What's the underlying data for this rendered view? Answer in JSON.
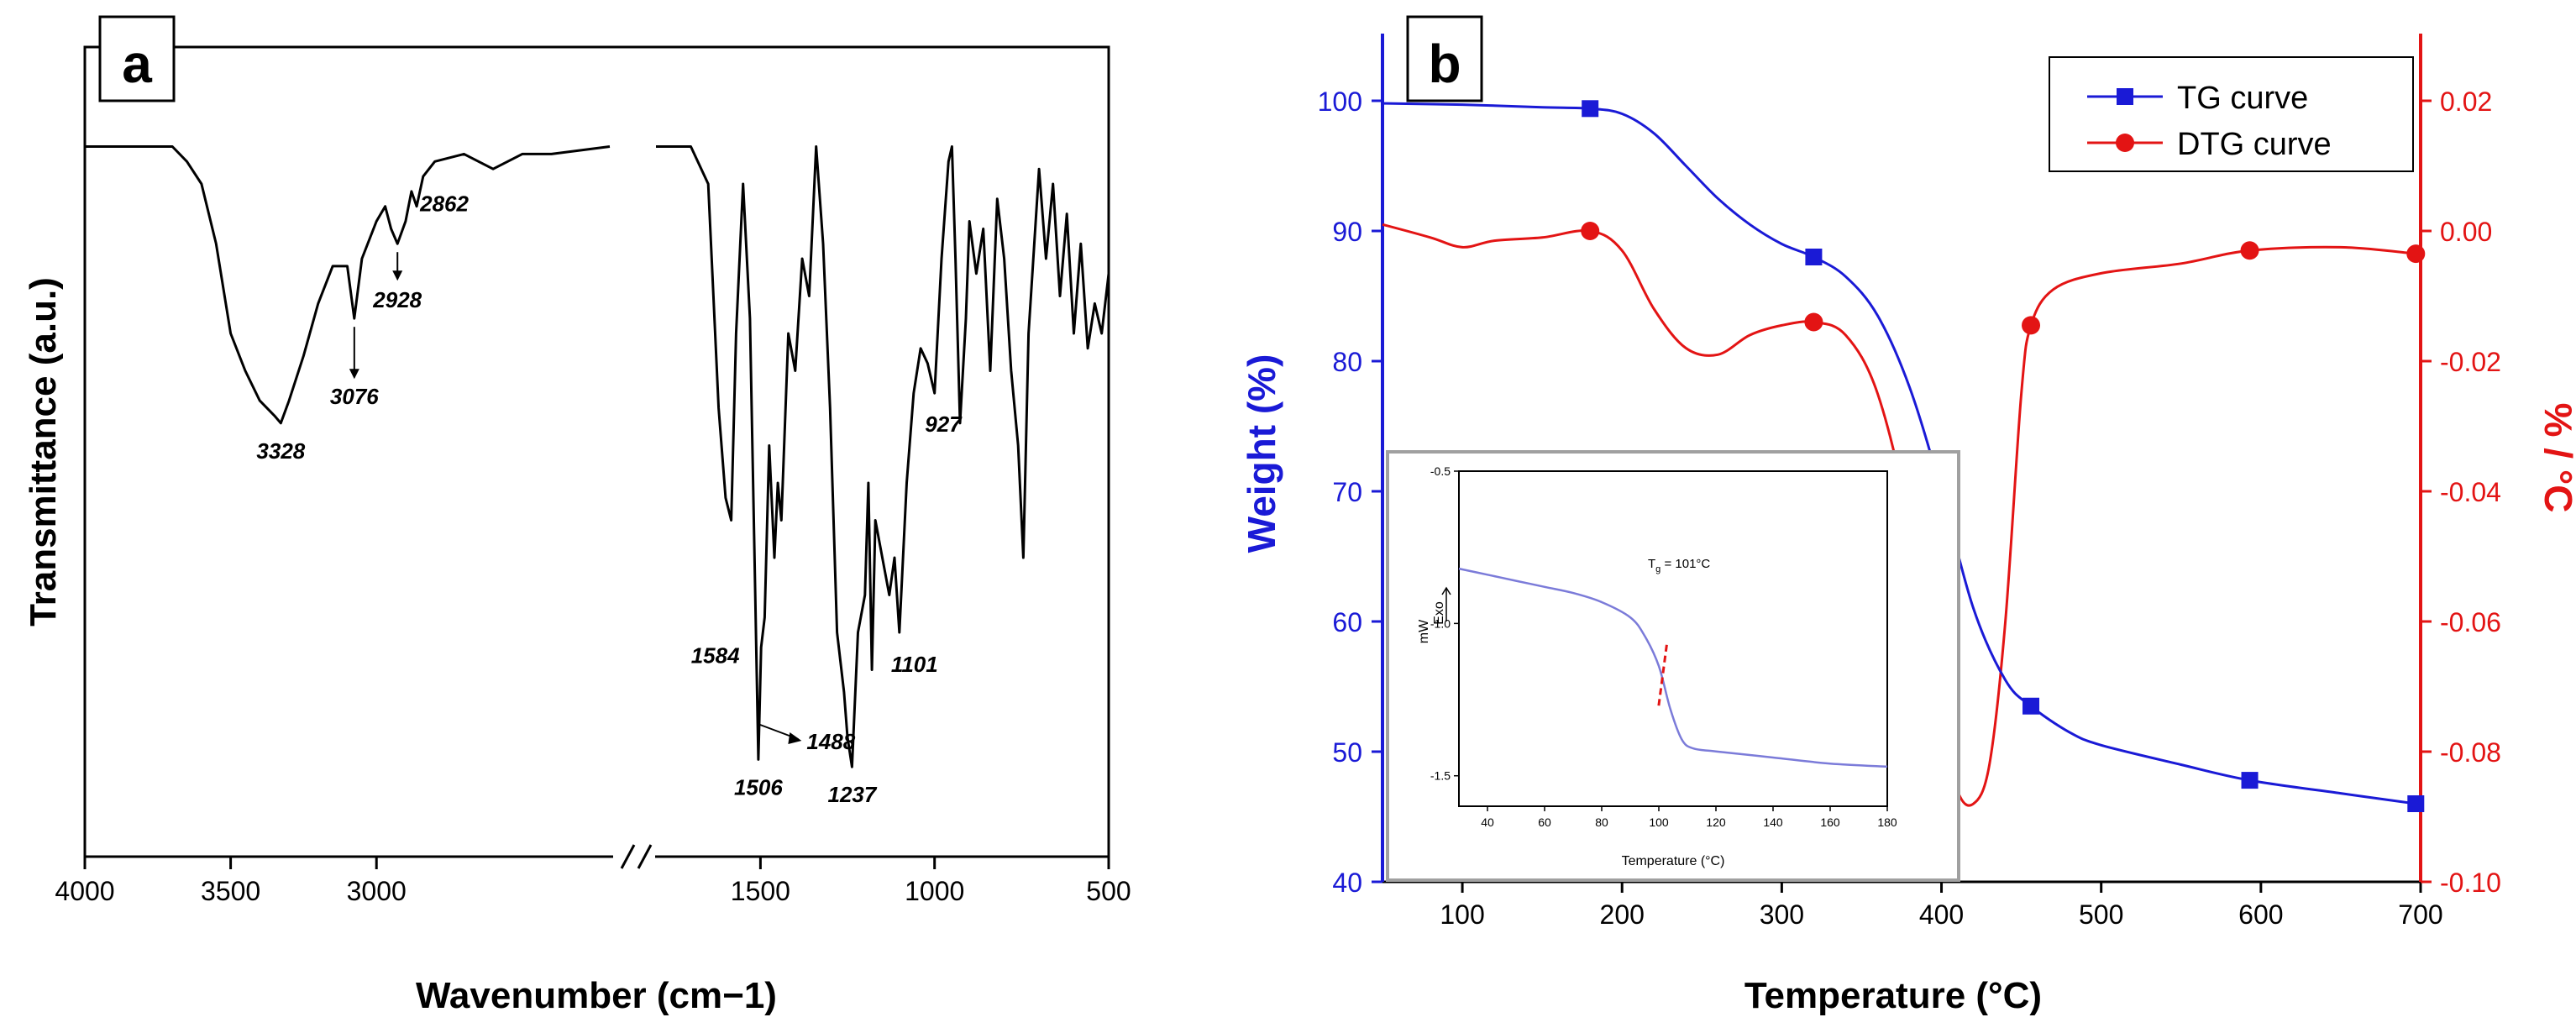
{
  "chart_data": [
    {
      "panel": "a",
      "type": "line",
      "xlabel": "Wavenumber (cm−1)",
      "ylabel": "Transmittance (a.u.)",
      "x_ticks": [
        "4000",
        "3500",
        "3000",
        "1500",
        "1000",
        "500"
      ],
      "x_segments": [
        [
          4000,
          2200
        ],
        [
          1800,
          500
        ]
      ],
      "ylim": [
        0,
        100
      ],
      "series": [
        {
          "points": [
            [
              4000,
              95
            ],
            [
              3700,
              95
            ],
            [
              3650,
              93
            ],
            [
              3600,
              90
            ],
            [
              3550,
              82
            ],
            [
              3500,
              70
            ],
            [
              3450,
              65
            ],
            [
              3400,
              61
            ],
            [
              3350,
              59
            ],
            [
              3328,
              58
            ],
            [
              3300,
              61
            ],
            [
              3250,
              67
            ],
            [
              3200,
              74
            ],
            [
              3150,
              79
            ],
            [
              3100,
              79
            ],
            [
              3076,
              72
            ],
            [
              3050,
              80
            ],
            [
              3000,
              85
            ],
            [
              2970,
              87
            ],
            [
              2950,
              84
            ],
            [
              2928,
              82
            ],
            [
              2900,
              85
            ],
            [
              2880,
              89
            ],
            [
              2862,
              87
            ],
            [
              2840,
              91
            ],
            [
              2800,
              93
            ],
            [
              2700,
              94
            ],
            [
              2600,
              92
            ],
            [
              2500,
              94
            ],
            [
              2400,
              94
            ],
            [
              2200,
              95
            ],
            [
              1800,
              95
            ],
            [
              1700,
              95
            ],
            [
              1650,
              90
            ],
            [
              1620,
              60
            ],
            [
              1600,
              48
            ],
            [
              1584,
              45
            ],
            [
              1570,
              70
            ],
            [
              1550,
              90
            ],
            [
              1530,
              72
            ],
            [
              1515,
              35
            ],
            [
              1506,
              13
            ],
            [
              1498,
              28
            ],
            [
              1488,
              32
            ],
            [
              1475,
              55
            ],
            [
              1460,
              40
            ],
            [
              1450,
              50
            ],
            [
              1440,
              45
            ],
            [
              1420,
              70
            ],
            [
              1400,
              65
            ],
            [
              1380,
              80
            ],
            [
              1360,
              75
            ],
            [
              1340,
              95
            ],
            [
              1320,
              82
            ],
            [
              1300,
              60
            ],
            [
              1280,
              30
            ],
            [
              1260,
              22
            ],
            [
              1250,
              16
            ],
            [
              1237,
              12
            ],
            [
              1220,
              30
            ],
            [
              1200,
              35
            ],
            [
              1190,
              50
            ],
            [
              1180,
              25
            ],
            [
              1170,
              45
            ],
            [
              1150,
              40
            ],
            [
              1130,
              35
            ],
            [
              1115,
              40
            ],
            [
              1101,
              30
            ],
            [
              1080,
              50
            ],
            [
              1060,
              62
            ],
            [
              1040,
              68
            ],
            [
              1020,
              66
            ],
            [
              1000,
              62
            ],
            [
              980,
              80
            ],
            [
              960,
              93
            ],
            [
              950,
              95
            ],
            [
              940,
              80
            ],
            [
              927,
              58
            ],
            [
              910,
              72
            ],
            [
              900,
              85
            ],
            [
              880,
              78
            ],
            [
              860,
              84
            ],
            [
              840,
              65
            ],
            [
              820,
              88
            ],
            [
              800,
              80
            ],
            [
              780,
              65
            ],
            [
              760,
              55
            ],
            [
              745,
              40
            ],
            [
              730,
              70
            ],
            [
              700,
              92
            ],
            [
              680,
              80
            ],
            [
              660,
              90
            ],
            [
              640,
              75
            ],
            [
              620,
              86
            ],
            [
              600,
              70
            ],
            [
              580,
              82
            ],
            [
              560,
              68
            ],
            [
              540,
              74
            ],
            [
              520,
              70
            ],
            [
              500,
              78
            ]
          ]
        }
      ],
      "annotations": [
        {
          "label": "3328",
          "x": 3328,
          "y": 58
        },
        {
          "label": "3076",
          "x": 3076,
          "y": 72,
          "arrow": true
        },
        {
          "label": "2928",
          "x": 2928,
          "y": 82,
          "arrow": true
        },
        {
          "label": "2862",
          "x": 2862,
          "y": 87
        },
        {
          "label": "1584",
          "x": 1584,
          "y": 45
        },
        {
          "label": "1506",
          "x": 1506,
          "y": 13
        },
        {
          "label": "1488",
          "x": 1488,
          "y": 32,
          "arrow": true
        },
        {
          "label": "1237",
          "x": 1237,
          "y": 12
        },
        {
          "label": "1101",
          "x": 1101,
          "y": 30
        },
        {
          "label": "927",
          "x": 927,
          "y": 58
        }
      ]
    },
    {
      "panel": "b",
      "type": "line",
      "xlabel": "Temperature (°C)",
      "ylabel": "Weight (%)",
      "ylabel_right": "% / °C",
      "xlim": [
        50,
        700
      ],
      "ylim": [
        40,
        105
      ],
      "ylim_right": [
        -0.1,
        0.03
      ],
      "x_ticks": [
        100,
        200,
        300,
        400,
        500,
        600,
        700
      ],
      "y_ticks": [
        40,
        50,
        60,
        70,
        80,
        90,
        100
      ],
      "y_ticks_right": [
        "-0.10",
        "-0.08",
        "-0.06",
        "-0.04",
        "-0.02",
        "0.00",
        "0.02"
      ],
      "legend_position": "top-right",
      "series": [
        {
          "name": "TG curve",
          "color": "#1a1ad6",
          "marker": "square",
          "points": [
            [
              50,
              99.8
            ],
            [
              100,
              99.7
            ],
            [
              150,
              99.5
            ],
            [
              180,
              99.4
            ],
            [
              200,
              99.0
            ],
            [
              220,
              97.5
            ],
            [
              240,
              95.0
            ],
            [
              260,
              92.5
            ],
            [
              280,
              90.5
            ],
            [
              300,
              89.0
            ],
            [
              320,
              88.0
            ],
            [
              340,
              86.5
            ],
            [
              360,
              83.5
            ],
            [
              380,
              78.0
            ],
            [
              400,
              70.0
            ],
            [
              420,
              61.0
            ],
            [
              440,
              55.5
            ],
            [
              456,
              53.5
            ],
            [
              480,
              51.5
            ],
            [
              500,
              50.5
            ],
            [
              550,
              49.0
            ],
            [
              593,
              47.8
            ],
            [
              650,
              46.8
            ],
            [
              697,
              46.0
            ]
          ],
          "markers_at": [
            180,
            320,
            456,
            593,
            697
          ]
        },
        {
          "name": "DTG curve",
          "color": "#e31414",
          "marker": "circle",
          "axis": "right",
          "points": [
            [
              50,
              0.001
            ],
            [
              80,
              -0.001
            ],
            [
              100,
              -0.0025
            ],
            [
              120,
              -0.0015
            ],
            [
              150,
              -0.001
            ],
            [
              180,
              0.0
            ],
            [
              200,
              -0.003
            ],
            [
              220,
              -0.012
            ],
            [
              240,
              -0.018
            ],
            [
              260,
              -0.019
            ],
            [
              280,
              -0.016
            ],
            [
              300,
              -0.0145
            ],
            [
              320,
              -0.014
            ],
            [
              340,
              -0.016
            ],
            [
              360,
              -0.025
            ],
            [
              380,
              -0.045
            ],
            [
              400,
              -0.075
            ],
            [
              410,
              -0.086
            ],
            [
              420,
              -0.088
            ],
            [
              430,
              -0.082
            ],
            [
              440,
              -0.06
            ],
            [
              450,
              -0.025
            ],
            [
              456,
              -0.0145
            ],
            [
              470,
              -0.009
            ],
            [
              500,
              -0.0065
            ],
            [
              550,
              -0.005
            ],
            [
              593,
              -0.003
            ],
            [
              650,
              -0.0025
            ],
            [
              697,
              -0.0035
            ]
          ],
          "markers_at": [
            180,
            320,
            456,
            593,
            697
          ]
        }
      ],
      "inset": {
        "type": "line",
        "xlabel": "Temperature (°C)",
        "ylabel": "mW",
        "exo_label": "Exo",
        "annotation": "T",
        "annotation_sub": "g",
        "annotation_value": " = 101°C",
        "annotation_x": 101,
        "xlim": [
          30,
          180
        ],
        "ylim": [
          -1.6,
          -0.5
        ],
        "x_ticks": [
          40,
          60,
          80,
          100,
          120,
          140,
          160,
          180
        ],
        "y_ticks": [
          "-0.5",
          "-1.0",
          "-1.5"
        ],
        "color": "#7b7bd9",
        "points": [
          [
            30,
            -0.82
          ],
          [
            40,
            -0.84
          ],
          [
            50,
            -0.86
          ],
          [
            60,
            -0.88
          ],
          [
            70,
            -0.9
          ],
          [
            80,
            -0.93
          ],
          [
            90,
            -0.98
          ],
          [
            95,
            -1.04
          ],
          [
            100,
            -1.14
          ],
          [
            104,
            -1.28
          ],
          [
            108,
            -1.38
          ],
          [
            112,
            -1.41
          ],
          [
            120,
            -1.42
          ],
          [
            140,
            -1.44
          ],
          [
            160,
            -1.46
          ],
          [
            180,
            -1.47
          ]
        ]
      }
    }
  ],
  "panel_labels": {
    "a": "a",
    "b": "b"
  },
  "legend": {
    "tg": "TG curve",
    "dtg": "DTG curve"
  }
}
